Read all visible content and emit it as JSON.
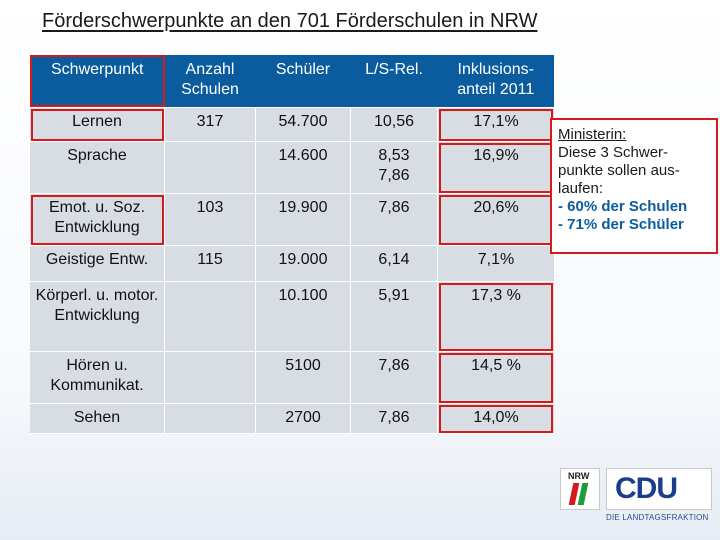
{
  "title": "Förderschwerpunkte an den 701 Förderschulen in NRW",
  "table": {
    "headers": [
      "Schwerpunkt",
      "Anzahl Schulen",
      "Schüler",
      "L/S-Rel.",
      "Inklusions-anteil 2011"
    ],
    "rows": [
      {
        "c0": "Lernen",
        "c1": "317",
        "c2": "54.700",
        "c3": "10,56",
        "c4": "17,1%"
      },
      {
        "c0": "Sprache",
        "c1": "",
        "c2": "14.600",
        "c3": "8,53\n7,86",
        "c4": "16,9%"
      },
      {
        "c0": "Emot. u. Soz. Entwicklung",
        "c1": "103",
        "c2": "19.900",
        "c3": "7,86",
        "c4": "20,6%"
      },
      {
        "c0": "Geistige Entw.",
        "c1": "115",
        "c2": "19.000",
        "c3": "6,14",
        "c4": "7,1%"
      },
      {
        "c0": "Körperl. u. motor. Entwicklung",
        "c1": "",
        "c2": "10.100",
        "c3": "5,91",
        "c4": "17,3 %"
      },
      {
        "c0": "Hören u. Kommunikat.",
        "c1": "",
        "c2": "5100",
        "c3": "7,86",
        "c4": "14,5 %"
      },
      {
        "c0": "Sehen",
        "c1": "",
        "c2": "2700",
        "c3": "7,86",
        "c4": "14,0%"
      }
    ]
  },
  "note": {
    "line1": "Ministerin:",
    "line2": "Diese 3 Schwer-",
    "line3": "punkte sollen aus-",
    "line4": "laufen:",
    "line5": "- 60% der Schulen",
    "line6": "- 71% der Schüler"
  },
  "logo": {
    "nrw_text": "NRW",
    "cdu_text": "CDU",
    "sub_text": "DIE LANDTAGSFRAKTION"
  },
  "colors": {
    "header_bg": "#0a5c9e",
    "cell_bg": "#d8dde3",
    "highlight": "#d41a1a",
    "note_blue": "#0a5c9e"
  }
}
